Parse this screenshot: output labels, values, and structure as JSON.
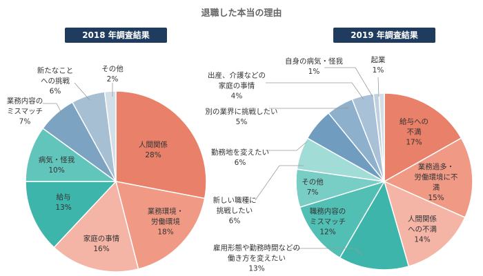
{
  "title": "退職した本当の理由",
  "chart_data": [
    {
      "type": "pie",
      "title": "2018 年調査結果",
      "categories": [
        "人間関係",
        "業務環境・\n労働環境",
        "家庭の事情",
        "給与",
        "病気・怪我",
        "業務内容の\nミスマッチ",
        "新たなこと\nへの挑戦",
        "その他"
      ],
      "values": [
        28,
        18,
        16,
        13,
        10,
        7,
        6,
        2
      ],
      "value_labels": [
        "28%",
        "18%",
        "16%",
        "13%",
        "10%",
        "7%",
        "6%",
        "2%"
      ],
      "colors": [
        "#e98069",
        "#f09a86",
        "#f4b5a6",
        "#3db5ab",
        "#62c5bb",
        "#7ca3c1",
        "#a6bfd3",
        "#d3dfe7"
      ]
    },
    {
      "type": "pie",
      "title": "2019 年調査結果",
      "categories": [
        "給与への\n不満",
        "業務過多・\n労働環境に不満",
        "人間関係\nへの不満",
        "雇用形態や勤務時間などの\n働き方を変えたい",
        "職務内容の\nミスマッチ",
        "その他",
        "新しい職種に\n挑戦したい",
        "勤務地を変えたい",
        "別の業界に挑戦したい",
        "出産、介護などの\n家庭の事情",
        "自身の病気・怪我",
        "起業"
      ],
      "values": [
        17,
        15,
        14,
        13,
        12,
        7,
        6,
        6,
        5,
        4,
        1,
        1
      ],
      "value_labels": [
        "17%",
        "15%",
        "14%",
        "13%",
        "12%",
        "7%",
        "6%",
        "6%",
        "5%",
        "4%",
        "1%",
        "1%"
      ],
      "colors": [
        "#e98069",
        "#f09a86",
        "#f4b5a6",
        "#3db5ab",
        "#52bfb5",
        "#78cdc4",
        "#a2dcd7",
        "#6f9cbf",
        "#8db0cd",
        "#a8c1d6",
        "#bfd0de",
        "#d3dfe7"
      ]
    }
  ]
}
